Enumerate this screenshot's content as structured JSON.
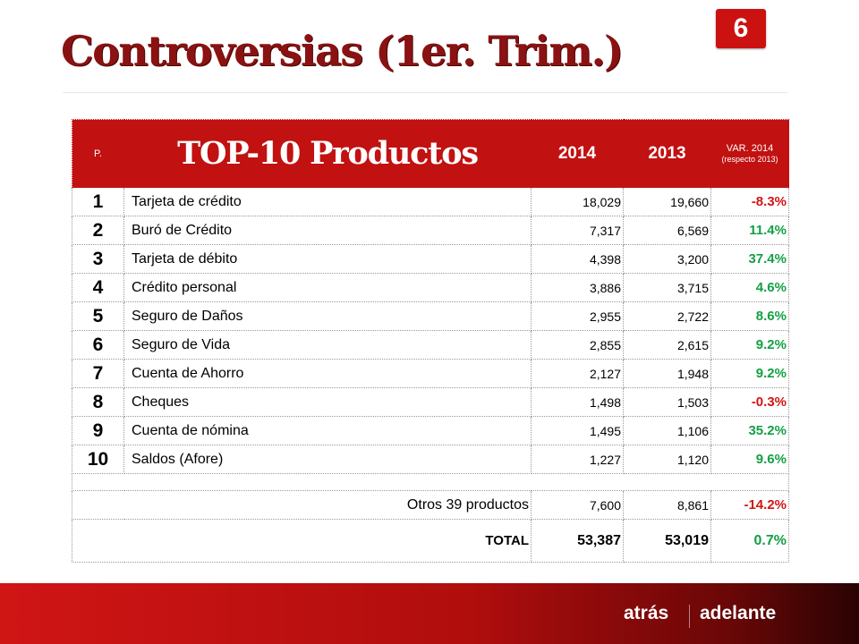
{
  "slide": {
    "title": "Controversias (1er. Trim.)",
    "page_number": "6"
  },
  "table": {
    "header": {
      "rank": "P.",
      "title": "TOP-10 Productos",
      "year_2014": "2014",
      "year_2013": "2013",
      "var_label": "VAR. 2014",
      "var_sub": "(respecto 2013)"
    },
    "rows": [
      {
        "rank": "1",
        "name": "Tarjeta de crédito",
        "v2014": "18,029",
        "v2013": "19,660",
        "var": "-8.3%"
      },
      {
        "rank": "2",
        "name": "Buró de Crédito",
        "v2014": "7,317",
        "v2013": "6,569",
        "var": "11.4%"
      },
      {
        "rank": "3",
        "name": "Tarjeta de débito",
        "v2014": "4,398",
        "v2013": "3,200",
        "var": "37.4%"
      },
      {
        "rank": "4",
        "name": "Crédito personal",
        "v2014": "3,886",
        "v2013": "3,715",
        "var": "4.6%"
      },
      {
        "rank": "5",
        "name": "Seguro de Daños",
        "v2014": "2,955",
        "v2013": "2,722",
        "var": "8.6%"
      },
      {
        "rank": "6",
        "name": "Seguro de Vida",
        "v2014": "2,855",
        "v2013": "2,615",
        "var": "9.2%"
      },
      {
        "rank": "7",
        "name": "Cuenta de Ahorro",
        "v2014": "2,127",
        "v2013": "1,948",
        "var": "9.2%"
      },
      {
        "rank": "8",
        "name": "Cheques",
        "v2014": "1,498",
        "v2013": "1,503",
        "var": "-0.3%"
      },
      {
        "rank": "9",
        "name": "Cuenta de nómina",
        "v2014": "1,495",
        "v2013": "1,106",
        "var": "35.2%"
      },
      {
        "rank": "10",
        "name": "Saldos (Afore)",
        "v2014": "1,227",
        "v2013": "1,120",
        "var": "9.6%"
      }
    ],
    "others": {
      "label": "Otros 39 productos",
      "v2014": "7,600",
      "v2013": "8,861",
      "var": "-14.2%"
    },
    "total": {
      "label": "TOTAL",
      "v2014": "53,387",
      "v2013": "53,019",
      "var": "0.7%"
    }
  },
  "colors": {
    "header_red": "#c11111",
    "negative": "#d21414",
    "positive": "#13a045",
    "title": "#8b1212"
  },
  "nav": {
    "back": "atrás",
    "next": "adelante"
  }
}
